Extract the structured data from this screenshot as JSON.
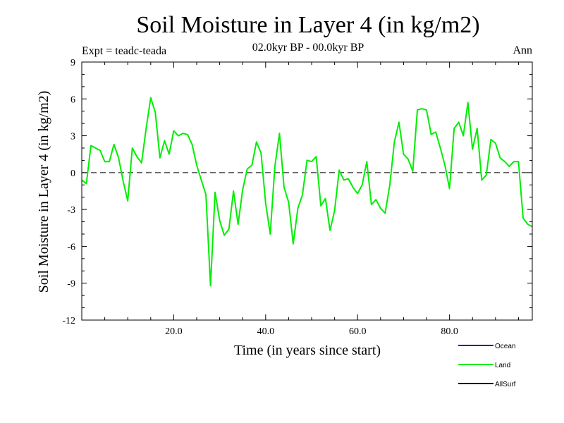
{
  "chart_data": {
    "type": "line",
    "title": "Soil Moisture in Layer 4 (in kg/m2)",
    "subtitle": "02.0kyr BP - 00.0kyr BP",
    "experiment_label": "Expt = teadc-teada",
    "period_label": "Ann",
    "xlabel": "Time (in years since start)",
    "ylabel": "Soil Moisture in Layer 4 (in kg/m2)",
    "xlim": [
      0,
      98
    ],
    "ylim": [
      -12,
      9
    ],
    "x_ticks": [
      20,
      40,
      60,
      80
    ],
    "x_tick_labels": [
      "20.0",
      "40.0",
      "60.0",
      "80.0"
    ],
    "y_ticks": [
      9,
      6,
      3,
      0,
      -3,
      -6,
      -9,
      -12
    ],
    "y_tick_labels": [
      "9",
      "6",
      "3",
      "0",
      "-3",
      "-6",
      "-9",
      "-12"
    ],
    "zero_line": "dashed",
    "legend": [
      {
        "name": "Ocean",
        "color": "#0000cc"
      },
      {
        "name": "Land",
        "color": "#00ee00"
      },
      {
        "name": "AllSurf",
        "color": "#000000"
      }
    ],
    "series": [
      {
        "name": "Land",
        "color": "#00ee00",
        "x": [
          0,
          1,
          2,
          3,
          4,
          5,
          6,
          7,
          8,
          9,
          10,
          11,
          12,
          13,
          14,
          15,
          16,
          17,
          18,
          19,
          20,
          21,
          22,
          23,
          24,
          25,
          26,
          27,
          28,
          29,
          30,
          31,
          32,
          33,
          34,
          35,
          36,
          37,
          38,
          39,
          40,
          41,
          42,
          43,
          44,
          45,
          46,
          47,
          48,
          49,
          50,
          51,
          52,
          53,
          54,
          55,
          56,
          57,
          58,
          59,
          60,
          61,
          62,
          63,
          64,
          65,
          66,
          67,
          68,
          69,
          70,
          71,
          72,
          73,
          74,
          75,
          76,
          77,
          78,
          79,
          80,
          81,
          82,
          83,
          84,
          85,
          86,
          87,
          88,
          89,
          90,
          91,
          92,
          93,
          94,
          95,
          96,
          97,
          98
        ],
        "values": [
          -0.6,
          -0.9,
          2.2,
          2.0,
          1.8,
          0.9,
          0.9,
          2.3,
          1.2,
          -0.7,
          -2.3,
          2.0,
          1.3,
          0.8,
          3.6,
          6.1,
          4.9,
          1.2,
          2.6,
          1.5,
          3.4,
          3.0,
          3.2,
          3.1,
          2.3,
          0.6,
          -0.6,
          -1.8,
          -9.2,
          -1.6,
          -3.9,
          -5.1,
          -4.6,
          -1.5,
          -4.2,
          -1.4,
          0.3,
          0.6,
          2.5,
          1.6,
          -2.5,
          -5.0,
          0.5,
          3.2,
          -1.2,
          -2.4,
          -5.8,
          -2.9,
          -1.8,
          1.0,
          0.9,
          1.3,
          -2.7,
          -2.1,
          -4.7,
          -3.1,
          0.2,
          -0.6,
          -0.5,
          -1.2,
          -1.7,
          -1.0,
          0.9,
          -2.6,
          -2.2,
          -2.9,
          -3.3,
          -1.0,
          2.5,
          4.1,
          1.5,
          1.1,
          0.1,
          5.1,
          5.2,
          5.1,
          3.1,
          3.3,
          2.0,
          0.6,
          -1.3,
          3.6,
          4.1,
          3.0,
          5.7,
          1.9,
          3.6,
          -0.6,
          -0.2,
          2.7,
          2.4,
          1.2,
          0.9,
          0.5,
          0.9,
          0.9,
          -3.7,
          -4.2,
          -4.4
        ]
      }
    ]
  }
}
